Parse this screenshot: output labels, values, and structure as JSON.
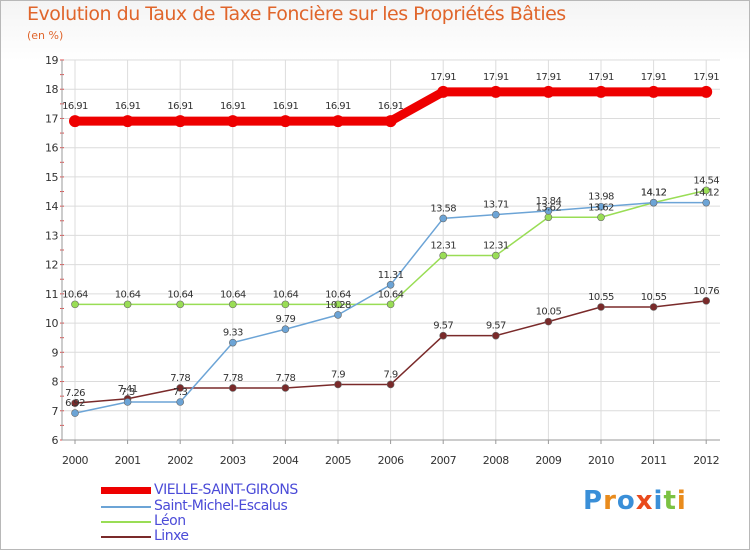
{
  "header": {
    "title": "Evolution du Taux de Taxe Foncière sur les Propriétés Bâties",
    "subtitle": "(en %)"
  },
  "chart_data": {
    "type": "line",
    "title": "Evolution du Taux de Taxe Foncière sur les Propriétés Bâties",
    "ylabel": "(en %)",
    "xlabel": "",
    "ylim": [
      6,
      19
    ],
    "yticks": [
      "6",
      "7",
      "8",
      "9",
      "10",
      "11",
      "12",
      "13",
      "14",
      "15",
      "16",
      "17",
      "18",
      "19"
    ],
    "categories": [
      "2000",
      "2001",
      "2002",
      "2003",
      "2004",
      "2005",
      "2006",
      "2007",
      "2008",
      "2009",
      "2010",
      "2011",
      "2012"
    ],
    "series": [
      {
        "name": "VIELLE-SAINT-GIRONS",
        "color": "#ee0000",
        "values": [
          16.91,
          16.91,
          16.91,
          16.91,
          16.91,
          16.91,
          16.91,
          17.91,
          17.91,
          17.91,
          17.91,
          17.91,
          17.91
        ],
        "labels": [
          "16.91",
          "16.91",
          "16.91",
          "16.91",
          "16.91",
          "16.91",
          "16.91",
          "17.91",
          "17.91",
          "17.91",
          "17.91",
          "17.91",
          "17.91"
        ]
      },
      {
        "name": "Saint-Michel-Escalus",
        "color": "#6ca4d6",
        "values": [
          6.92,
          7.3,
          7.3,
          9.33,
          9.79,
          10.28,
          11.31,
          13.58,
          13.71,
          13.84,
          13.98,
          14.12,
          14.12
        ],
        "labels": [
          "6.92",
          "7.3",
          "7.3",
          "9.33",
          "9.79",
          "10.28",
          "11.31",
          "13.58",
          "13.71",
          "13.84",
          "13.98",
          "14.12",
          "14.12"
        ]
      },
      {
        "name": "Léon",
        "color": "#99dd55",
        "values": [
          10.64,
          10.64,
          10.64,
          10.64,
          10.64,
          10.64,
          10.64,
          12.31,
          12.31,
          13.62,
          13.62,
          14.12,
          14.54
        ],
        "labels": [
          "10.64",
          "10.64",
          "10.64",
          "10.64",
          "10.64",
          "10.64",
          "10.64",
          "12.31",
          "12.31",
          "13.62",
          "13.62",
          "14.12",
          "14.54"
        ]
      },
      {
        "name": "Linxe",
        "color": "#7a2a2a",
        "values": [
          7.26,
          7.41,
          7.78,
          7.78,
          7.78,
          7.9,
          7.9,
          9.57,
          9.57,
          10.05,
          10.55,
          10.55,
          10.76
        ],
        "labels": [
          "7.26",
          "7.41",
          "7.78",
          "7.78",
          "7.78",
          "7.9",
          "7.9",
          "9.57",
          "9.57",
          "10.05",
          "10.55",
          "10.55",
          "10.76"
        ]
      }
    ],
    "legend_position": "bottom-left"
  },
  "legend": {
    "items": [
      {
        "label": "VIELLE-SAINT-GIRONS",
        "color": "#ee0000"
      },
      {
        "label": "Saint-Michel-Escalus",
        "color": "#6ca4d6"
      },
      {
        "label": "Léon",
        "color": "#99dd55"
      },
      {
        "label": "Linxe",
        "color": "#7a2a2a"
      }
    ]
  },
  "logo": {
    "letters": [
      "P",
      "r",
      "o",
      "x",
      "i",
      "t",
      "i"
    ],
    "colors": [
      "#3a8fd8",
      "#e98b1c",
      "#3a8fd8",
      "#e94a1c",
      "#3a8fd8",
      "#7cc243",
      "#e98b1c"
    ],
    "alt": "Proxiti"
  }
}
